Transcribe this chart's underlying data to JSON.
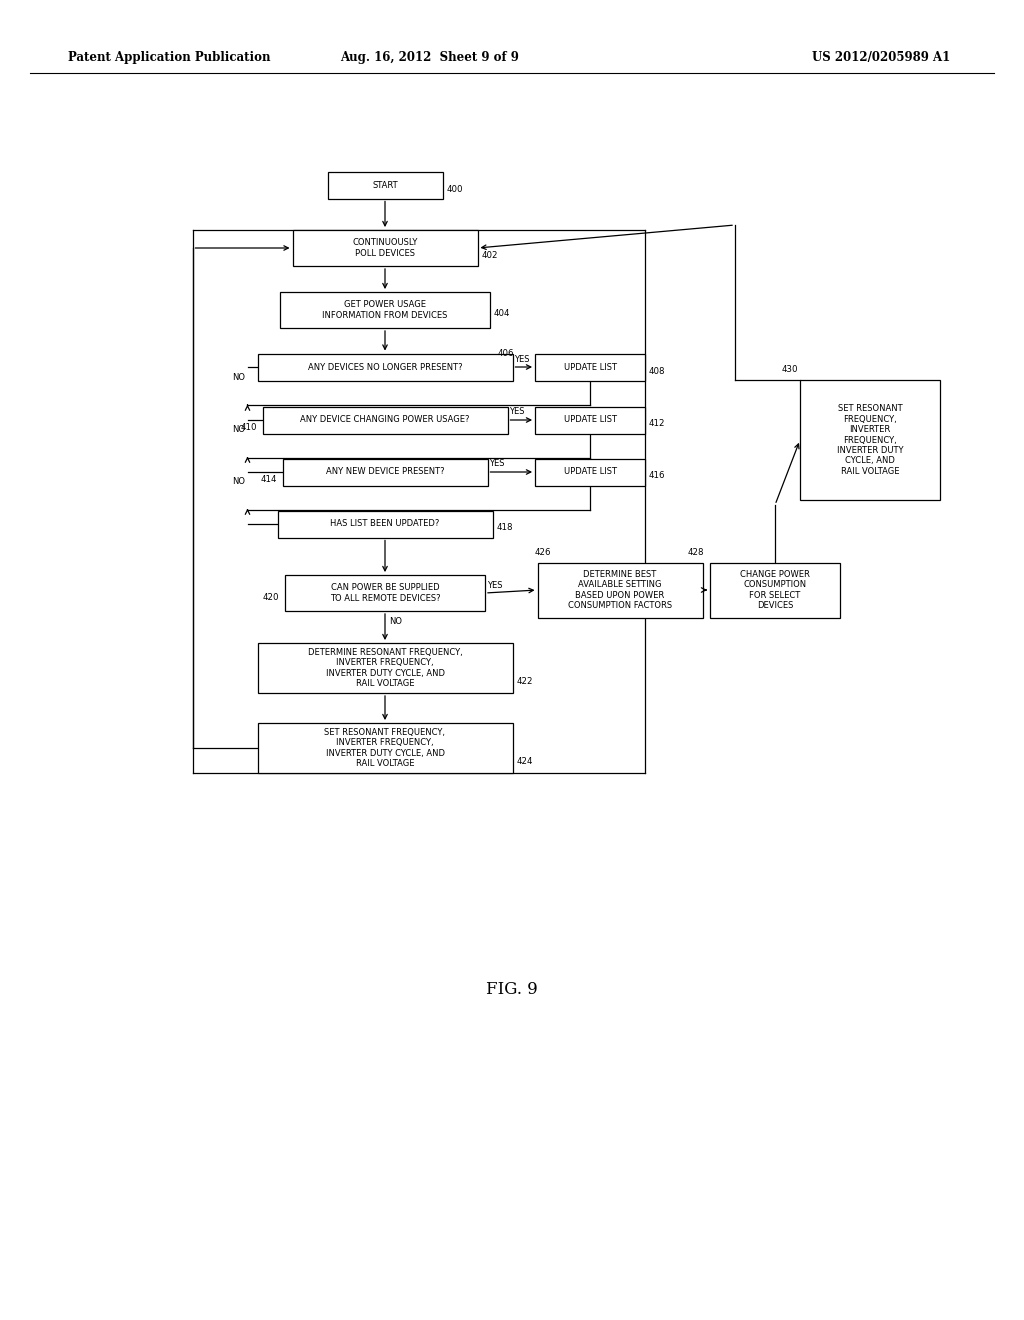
{
  "header_left": "Patent Application Publication",
  "header_center": "Aug. 16, 2012  Sheet 9 of 9",
  "header_right": "US 2012/0205989 A1",
  "fig_label": "FIG. 9",
  "background": "#ffffff",
  "font_size_header": 8.5,
  "font_size_node": 6.0,
  "font_size_ref": 6.2,
  "font_size_yn": 6.0,
  "font_size_figlabel": 12
}
